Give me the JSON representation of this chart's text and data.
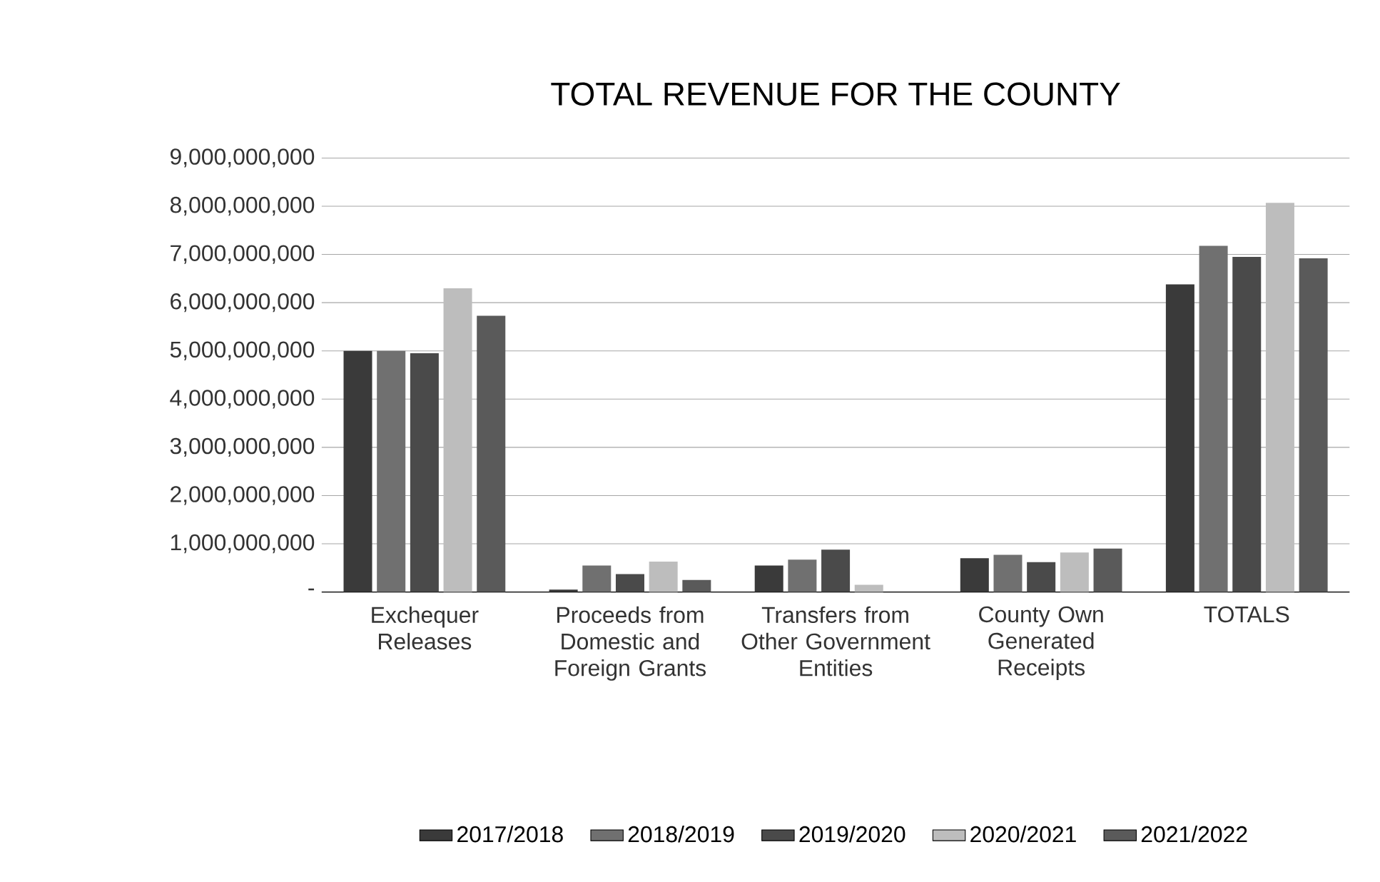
{
  "chart_data": {
    "type": "bar",
    "title": "TOTAL REVENUE FOR THE COUNTY",
    "categories": [
      "Exchequer Releases",
      "Proceeds from Domestic and Foreign Grants",
      "Transfers from Other Government Entities",
      "County Own Generated Receipts",
      "TOTALS"
    ],
    "series": [
      {
        "name": "2017/2018",
        "color": "#3a3a3a",
        "values": [
          5000000000,
          50000000,
          550000000,
          700000000,
          6380000000
        ]
      },
      {
        "name": "2018/2019",
        "color": "#707070",
        "values": [
          5000000000,
          550000000,
          670000000,
          770000000,
          7180000000
        ]
      },
      {
        "name": "2019/2020",
        "color": "#4a4a4a",
        "values": [
          4950000000,
          370000000,
          880000000,
          620000000,
          6950000000
        ]
      },
      {
        "name": "2020/2021",
        "color": "#bdbdbd",
        "values": [
          6300000000,
          630000000,
          150000000,
          820000000,
          8070000000
        ]
      },
      {
        "name": "2021/2022",
        "color": "#5a5a5a",
        "values": [
          5730000000,
          250000000,
          0,
          900000000,
          6920000000
        ]
      }
    ],
    "ylim": [
      0,
      9000000000
    ],
    "yticks": [
      {
        "value": 0,
        "label": "-"
      },
      {
        "value": 1000000000,
        "label": "1,000,000,000"
      },
      {
        "value": 2000000000,
        "label": "2,000,000,000"
      },
      {
        "value": 3000000000,
        "label": "3,000,000,000"
      },
      {
        "value": 4000000000,
        "label": "4,000,000,000"
      },
      {
        "value": 5000000000,
        "label": "5,000,000,000"
      },
      {
        "value": 6000000000,
        "label": "6,000,000,000"
      },
      {
        "value": 7000000000,
        "label": "7,000,000,000"
      },
      {
        "value": 8000000000,
        "label": "8,000,000,000"
      },
      {
        "value": 9000000000,
        "label": "9,000,000,000"
      }
    ],
    "grid": "y",
    "legend": "bottom"
  }
}
